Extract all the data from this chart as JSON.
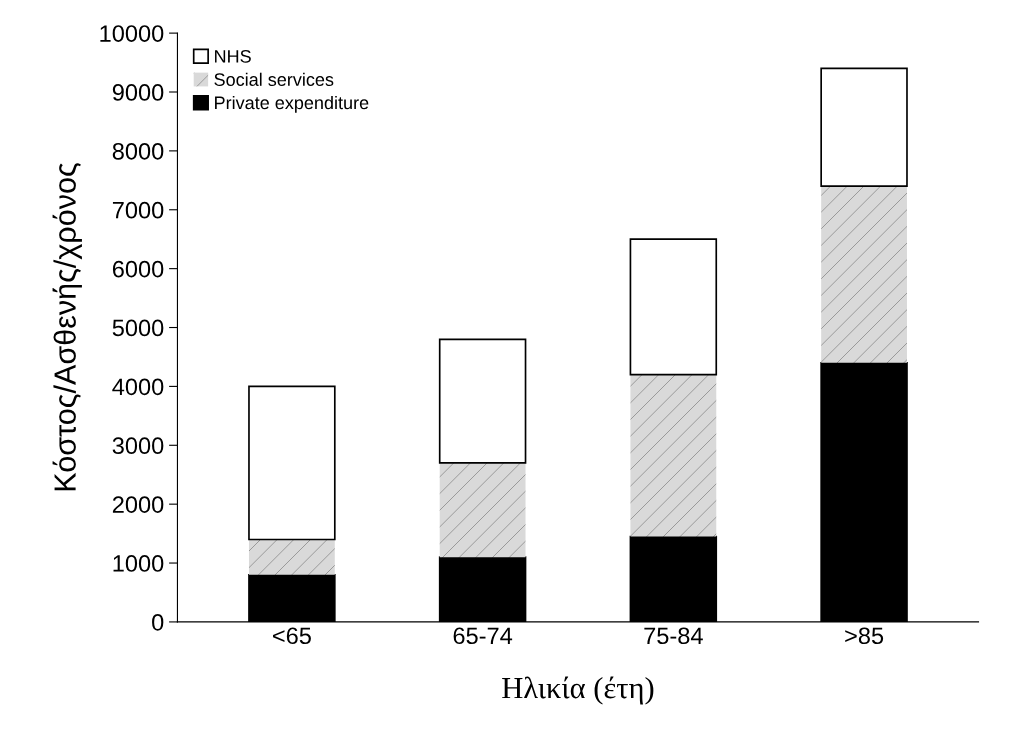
{
  "chart_data": {
    "type": "bar",
    "stacked": true,
    "categories": [
      "<65",
      "65-74",
      "75-84",
      ">85"
    ],
    "series": [
      {
        "name": "Private expenditure",
        "color": "#000000",
        "values": [
          800,
          1100,
          1450,
          4400
        ]
      },
      {
        "name": "Social services",
        "color": "#d9d9d9",
        "values": [
          600,
          1600,
          2750,
          3000
        ]
      },
      {
        "name": "NHS",
        "color": "#ffffff",
        "values": [
          2600,
          2100,
          2300,
          2000
        ]
      }
    ],
    "xlabel": "Ηλικία (έτη)",
    "ylabel": "Κόστος/Ασθενής/χρόνος",
    "ylim": [
      0,
      10000
    ],
    "yticks": [
      0,
      1000,
      2000,
      3000,
      4000,
      5000,
      6000,
      7000,
      8000,
      9000,
      10000
    ],
    "grid": false,
    "legend": "top left"
  }
}
